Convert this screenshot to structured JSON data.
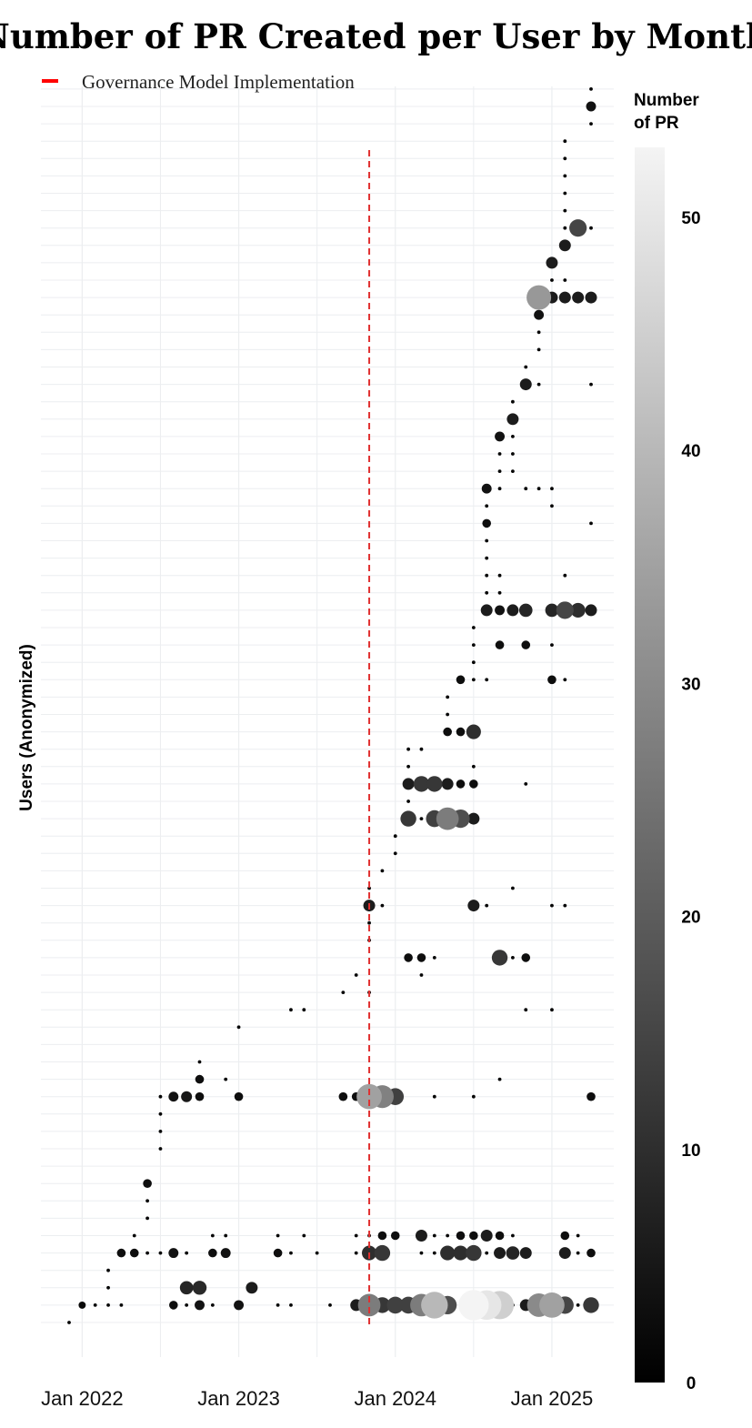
{
  "chart_data": {
    "type": "scatter",
    "title": "Number of PR Created per User by Month",
    "ylabel": "Users (Anonymized)",
    "xlabel": "",
    "x_ticks": [
      "Jan 2022",
      "Jan 2023",
      "Jan 2024",
      "Jan 2025"
    ],
    "x_range": [
      "2021-11",
      "2025-05"
    ],
    "y_range": [
      1,
      69
    ],
    "grid": true,
    "legend": {
      "label": "Governance Model Implementation",
      "color": "#ff0000",
      "placement": "top-left"
    },
    "vline": {
      "x": "2023-11",
      "color": "#e03030",
      "style": "dashed"
    },
    "colorbar": {
      "title_line1": "Number",
      "title_line2": "of PR",
      "min": 0,
      "max": 53,
      "ticks": [
        0,
        10,
        20,
        30,
        40,
        50
      ],
      "low_color": "#000000",
      "high_color": "#f4f4f4"
    },
    "points": [
      [
        "2021-12",
        1,
        1
      ],
      [
        "2022-01",
        2,
        2
      ],
      [
        "2022-02",
        2,
        1
      ],
      [
        "2022-03",
        2,
        1
      ],
      [
        "2022-04",
        2,
        1
      ],
      [
        "2022-08",
        2,
        3
      ],
      [
        "2022-09",
        2,
        1
      ],
      [
        "2022-10",
        2,
        4
      ],
      [
        "2022-11",
        2,
        1
      ],
      [
        "2023-01",
        2,
        4
      ],
      [
        "2023-04",
        2,
        1
      ],
      [
        "2023-05",
        2,
        1
      ],
      [
        "2023-08",
        2,
        1
      ],
      [
        "2023-10",
        2,
        6
      ],
      [
        "2023-11",
        2,
        27
      ],
      [
        "2023-12",
        2,
        12
      ],
      [
        "2024-01",
        2,
        14
      ],
      [
        "2024-02",
        2,
        14
      ],
      [
        "2024-03",
        2,
        27
      ],
      [
        "2024-04",
        2,
        40
      ],
      [
        "2024-05",
        2,
        17
      ],
      [
        "2024-06",
        2,
        1
      ],
      [
        "2024-07",
        2,
        53
      ],
      [
        "2024-08",
        2,
        50
      ],
      [
        "2024-09",
        2,
        45
      ],
      [
        "2024-10",
        2,
        1
      ],
      [
        "2024-11",
        2,
        6
      ],
      [
        "2024-12",
        2,
        30
      ],
      [
        "2025-01",
        2,
        35
      ],
      [
        "2025-02",
        2,
        15
      ],
      [
        "2025-03",
        2,
        1
      ],
      [
        "2025-04",
        2,
        12
      ],
      [
        "2022-03",
        3,
        1
      ],
      [
        "2022-09",
        3,
        8
      ],
      [
        "2022-10",
        3,
        9
      ],
      [
        "2023-02",
        3,
        6
      ],
      [
        "2022-03",
        4,
        1
      ],
      [
        "2022-04",
        5,
        3
      ],
      [
        "2022-05",
        5,
        3
      ],
      [
        "2022-06",
        5,
        1
      ],
      [
        "2022-07",
        5,
        1
      ],
      [
        "2022-08",
        5,
        4
      ],
      [
        "2022-09",
        5,
        1
      ],
      [
        "2022-11",
        5,
        3
      ],
      [
        "2022-12",
        5,
        4
      ],
      [
        "2023-04",
        5,
        3
      ],
      [
        "2023-05",
        5,
        1
      ],
      [
        "2023-07",
        5,
        1
      ],
      [
        "2023-10",
        5,
        1
      ],
      [
        "2023-11",
        5,
        10
      ],
      [
        "2023-12",
        5,
        12
      ],
      [
        "2024-03",
        5,
        1
      ],
      [
        "2024-04",
        5,
        1
      ],
      [
        "2024-05",
        5,
        10
      ],
      [
        "2024-06",
        5,
        10
      ],
      [
        "2024-07",
        5,
        12
      ],
      [
        "2024-08",
        5,
        1
      ],
      [
        "2024-09",
        5,
        6
      ],
      [
        "2024-10",
        5,
        8
      ],
      [
        "2024-11",
        5,
        6
      ],
      [
        "2025-02",
        5,
        6
      ],
      [
        "2025-03",
        5,
        1
      ],
      [
        "2025-04",
        5,
        3
      ],
      [
        "2022-05",
        6,
        1
      ],
      [
        "2022-11",
        6,
        1
      ],
      [
        "2022-12",
        6,
        1
      ],
      [
        "2023-04",
        6,
        1
      ],
      [
        "2023-06",
        6,
        1
      ],
      [
        "2023-10",
        6,
        1
      ],
      [
        "2023-11",
        6,
        1
      ],
      [
        "2023-12",
        6,
        3
      ],
      [
        "2024-01",
        6,
        3
      ],
      [
        "2024-03",
        6,
        6
      ],
      [
        "2024-04",
        6,
        1
      ],
      [
        "2024-05",
        6,
        1
      ],
      [
        "2024-06",
        6,
        3
      ],
      [
        "2024-07",
        6,
        3
      ],
      [
        "2024-08",
        6,
        6
      ],
      [
        "2024-09",
        6,
        3
      ],
      [
        "2024-10",
        6,
        1
      ],
      [
        "2025-02",
        6,
        3
      ],
      [
        "2025-03",
        6,
        1
      ],
      [
        "2022-06",
        7,
        1
      ],
      [
        "2022-06",
        8,
        1
      ],
      [
        "2022-06",
        9,
        3
      ],
      [
        "2022-07",
        11,
        1
      ],
      [
        "2022-07",
        12,
        1
      ],
      [
        "2022-07",
        13,
        1
      ],
      [
        "2022-07",
        14,
        1
      ],
      [
        "2022-08",
        14,
        4
      ],
      [
        "2022-09",
        14,
        5
      ],
      [
        "2022-10",
        14,
        3
      ],
      [
        "2023-01",
        14,
        3
      ],
      [
        "2023-09",
        14,
        3
      ],
      [
        "2023-10",
        14,
        3
      ],
      [
        "2023-11",
        14,
        35
      ],
      [
        "2023-12",
        14,
        28
      ],
      [
        "2024-01",
        14,
        14
      ],
      [
        "2024-04",
        14,
        1
      ],
      [
        "2024-07",
        14,
        1
      ],
      [
        "2025-04",
        14,
        3
      ],
      [
        "2022-10",
        15,
        3
      ],
      [
        "2022-12",
        15,
        1
      ],
      [
        "2024-09",
        15,
        1
      ],
      [
        "2022-10",
        16,
        1
      ],
      [
        "2023-01",
        18,
        1
      ],
      [
        "2023-05",
        19,
        1
      ],
      [
        "2023-06",
        19,
        1
      ],
      [
        "2024-11",
        19,
        1
      ],
      [
        "2025-01",
        19,
        1
      ],
      [
        "2023-09",
        20,
        1
      ],
      [
        "2023-11",
        20,
        1
      ],
      [
        "2023-10",
        21,
        1
      ],
      [
        "2024-03",
        21,
        1
      ],
      [
        "2024-02",
        22,
        3
      ],
      [
        "2024-03",
        22,
        3
      ],
      [
        "2024-04",
        22,
        1
      ],
      [
        "2024-09",
        22,
        12
      ],
      [
        "2024-10",
        22,
        1
      ],
      [
        "2024-11",
        22,
        3
      ],
      [
        "2023-11",
        23,
        1
      ],
      [
        "2023-11",
        24,
        1
      ],
      [
        "2023-11",
        25,
        6
      ],
      [
        "2023-12",
        25,
        1
      ],
      [
        "2024-07",
        25,
        6
      ],
      [
        "2024-08",
        25,
        1
      ],
      [
        "2025-01",
        25,
        1
      ],
      [
        "2025-02",
        25,
        1
      ],
      [
        "2023-11",
        26,
        1
      ],
      [
        "2024-10",
        26,
        1
      ],
      [
        "2023-12",
        27,
        1
      ],
      [
        "2024-01",
        28,
        1
      ],
      [
        "2024-01",
        29,
        1
      ],
      [
        "2024-02",
        30,
        12
      ],
      [
        "2024-03",
        30,
        1
      ],
      [
        "2024-04",
        30,
        14
      ],
      [
        "2024-05",
        30,
        27
      ],
      [
        "2024-06",
        30,
        17
      ],
      [
        "2024-07",
        30,
        6
      ],
      [
        "2024-02",
        31,
        1
      ],
      [
        "2024-02",
        32,
        6
      ],
      [
        "2024-03",
        32,
        12
      ],
      [
        "2024-04",
        32,
        12
      ],
      [
        "2024-05",
        32,
        6
      ],
      [
        "2024-06",
        32,
        3
      ],
      [
        "2024-07",
        32,
        3
      ],
      [
        "2024-11",
        32,
        1
      ],
      [
        "2024-02",
        33,
        1
      ],
      [
        "2024-07",
        33,
        1
      ],
      [
        "2024-02",
        34,
        1
      ],
      [
        "2024-03",
        34,
        1
      ],
      [
        "2024-05",
        35,
        3
      ],
      [
        "2024-06",
        35,
        3
      ],
      [
        "2024-07",
        35,
        10
      ],
      [
        "2024-05",
        36,
        1
      ],
      [
        "2024-05",
        37,
        1
      ],
      [
        "2024-06",
        38,
        3
      ],
      [
        "2024-07",
        38,
        1
      ],
      [
        "2024-08",
        38,
        1
      ],
      [
        "2025-01",
        38,
        3
      ],
      [
        "2025-02",
        38,
        1
      ],
      [
        "2024-07",
        39,
        1
      ],
      [
        "2024-07",
        40,
        1
      ],
      [
        "2024-09",
        40,
        3
      ],
      [
        "2024-11",
        40,
        3
      ],
      [
        "2025-01",
        40,
        1
      ],
      [
        "2024-07",
        41,
        1
      ],
      [
        "2024-08",
        42,
        6
      ],
      [
        "2024-09",
        42,
        4
      ],
      [
        "2024-10",
        42,
        6
      ],
      [
        "2024-11",
        42,
        8
      ],
      [
        "2025-01",
        42,
        8
      ],
      [
        "2025-02",
        42,
        15
      ],
      [
        "2025-03",
        42,
        10
      ],
      [
        "2025-04",
        42,
        6
      ],
      [
        "2024-08",
        43,
        1
      ],
      [
        "2024-09",
        43,
        1
      ],
      [
        "2024-08",
        44,
        1
      ],
      [
        "2024-09",
        44,
        1
      ],
      [
        "2025-02",
        44,
        1
      ],
      [
        "2024-08",
        45,
        1
      ],
      [
        "2024-08",
        46,
        1
      ],
      [
        "2024-08",
        47,
        3
      ],
      [
        "2025-04",
        47,
        1
      ],
      [
        "2024-08",
        48,
        1
      ],
      [
        "2025-01",
        48,
        1
      ],
      [
        "2024-08",
        49,
        4
      ],
      [
        "2024-09",
        49,
        1
      ],
      [
        "2024-11",
        49,
        1
      ],
      [
        "2024-12",
        49,
        1
      ],
      [
        "2025-01",
        49,
        1
      ],
      [
        "2024-09",
        50,
        1
      ],
      [
        "2024-10",
        50,
        1
      ],
      [
        "2024-09",
        51,
        1
      ],
      [
        "2024-10",
        51,
        1
      ],
      [
        "2024-09",
        52,
        4
      ],
      [
        "2024-10",
        52,
        1
      ],
      [
        "2024-10",
        53,
        6
      ],
      [
        "2024-10",
        54,
        1
      ],
      [
        "2024-11",
        55,
        6
      ],
      [
        "2024-12",
        55,
        1
      ],
      [
        "2025-04",
        55,
        1
      ],
      [
        "2024-11",
        56,
        1
      ],
      [
        "2024-12",
        57,
        1
      ],
      [
        "2024-12",
        58,
        1
      ],
      [
        "2024-12",
        59,
        4
      ],
      [
        "2024-12",
        60,
        33
      ],
      [
        "2025-01",
        60,
        6
      ],
      [
        "2025-02",
        60,
        6
      ],
      [
        "2025-03",
        60,
        6
      ],
      [
        "2025-04",
        60,
        6
      ],
      [
        "2025-01",
        61,
        1
      ],
      [
        "2025-02",
        61,
        1
      ],
      [
        "2025-01",
        62,
        6
      ],
      [
        "2025-02",
        63,
        6
      ],
      [
        "2025-02",
        64,
        1
      ],
      [
        "2025-03",
        64,
        15
      ],
      [
        "2025-04",
        64,
        1
      ],
      [
        "2025-02",
        65,
        1
      ],
      [
        "2025-02",
        66,
        1
      ],
      [
        "2025-02",
        67,
        1
      ],
      [
        "2025-02",
        68,
        1
      ],
      [
        "2025-02",
        69,
        1
      ],
      [
        "2025-04",
        70,
        1
      ],
      [
        "2025-04",
        71,
        4
      ],
      [
        "2025-04",
        72,
        1
      ]
    ]
  }
}
